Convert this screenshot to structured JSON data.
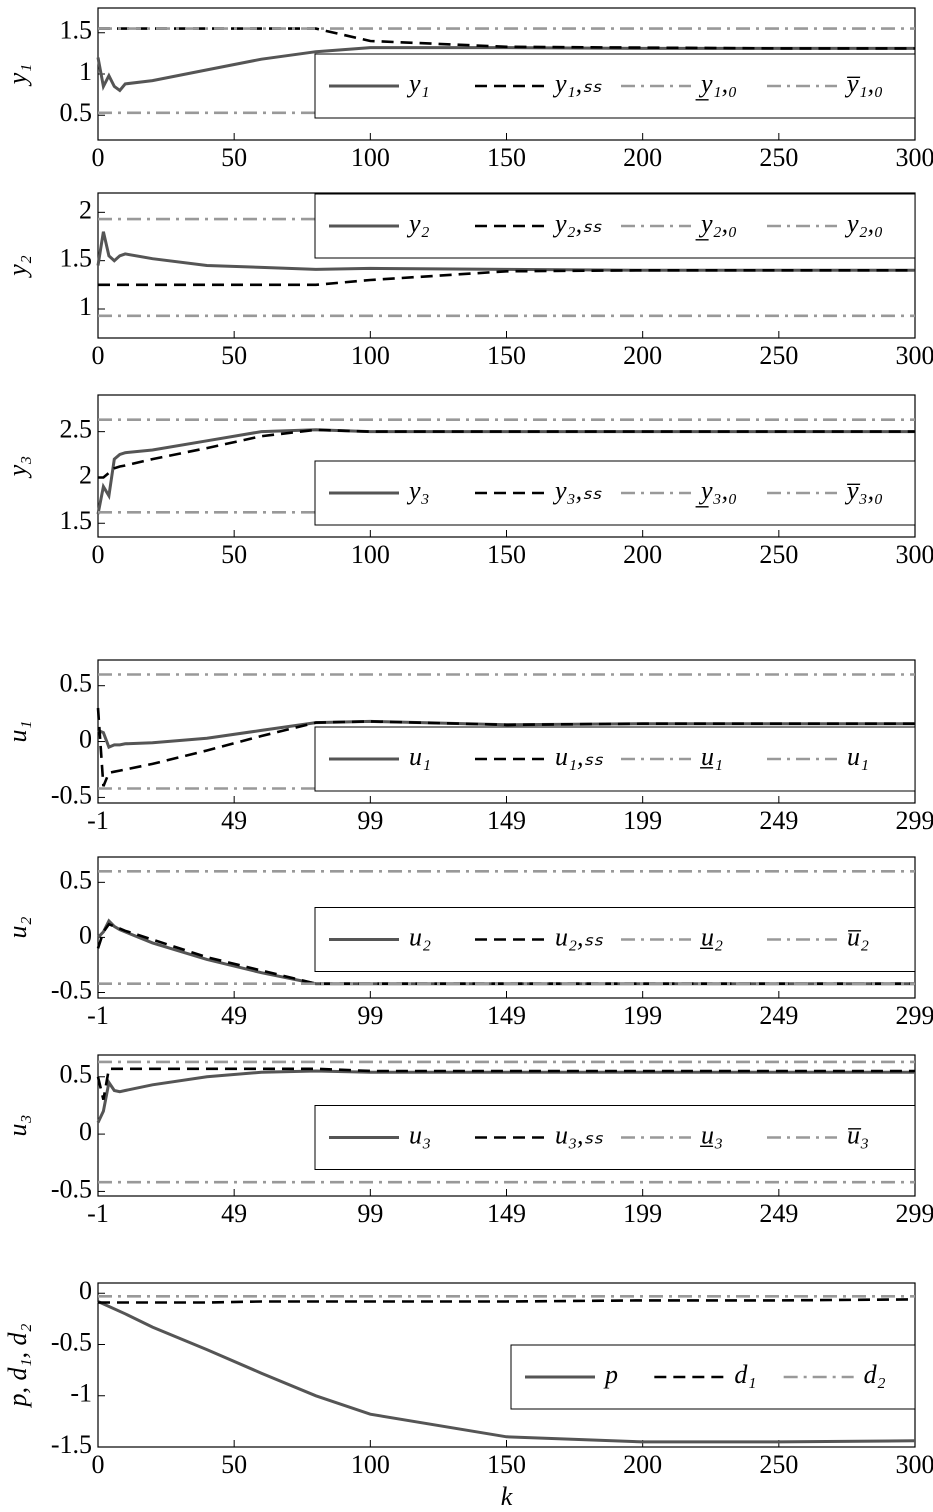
{
  "chart_data": [
    {
      "type": "line",
      "ylabel": "y₁",
      "xlim": [
        0,
        300
      ],
      "ylim": [
        0.2,
        1.8
      ],
      "xticks": [
        0,
        50,
        100,
        150,
        200,
        250,
        300
      ],
      "yticks": [
        0.5,
        1,
        1.5
      ],
      "legend": "center right",
      "x": [
        0,
        2,
        4,
        6,
        8,
        10,
        20,
        40,
        60,
        80,
        100,
        150,
        200,
        250,
        300
      ],
      "series": [
        {
          "name": "y₁",
          "color": "#555555",
          "style": "solid",
          "values": [
            1.2,
            0.85,
            0.98,
            0.85,
            0.8,
            0.88,
            0.92,
            1.05,
            1.18,
            1.27,
            1.32,
            1.32,
            1.31,
            1.31,
            1.31
          ]
        },
        {
          "name": "y₁,ₛₛ",
          "color": "#000000",
          "style": "dashed",
          "values": [
            1.55,
            1.55,
            1.55,
            1.55,
            1.55,
            1.55,
            1.55,
            1.55,
            1.55,
            1.55,
            1.4,
            1.33,
            1.32,
            1.31,
            1.31
          ]
        },
        {
          "name": "y̲₁,₀",
          "color": "#999999",
          "style": "dashdot",
          "values": [
            0.53,
            0.53,
            0.53,
            0.53,
            0.53,
            0.53,
            0.53,
            0.53,
            0.53,
            0.53,
            0.53,
            0.53,
            0.53,
            0.53,
            0.53
          ]
        },
        {
          "name": "y̅₁,₀",
          "color": "#999999",
          "style": "dashdot",
          "values": [
            1.55,
            1.55,
            1.55,
            1.55,
            1.55,
            1.55,
            1.55,
            1.55,
            1.55,
            1.55,
            1.55,
            1.55,
            1.55,
            1.55,
            1.55
          ]
        }
      ]
    },
    {
      "type": "line",
      "ylabel": "y₂",
      "xlim": [
        0,
        300
      ],
      "ylim": [
        0.7,
        2.2
      ],
      "xticks": [
        0,
        50,
        100,
        150,
        200,
        250,
        300
      ],
      "yticks": [
        1,
        1.5,
        2
      ],
      "legend": "upper right",
      "x": [
        0,
        2,
        4,
        6,
        8,
        10,
        20,
        40,
        60,
        80,
        100,
        150,
        200,
        250,
        300
      ],
      "series": [
        {
          "name": "y₂",
          "color": "#555555",
          "style": "solid",
          "values": [
            1.45,
            1.8,
            1.55,
            1.5,
            1.55,
            1.57,
            1.52,
            1.45,
            1.43,
            1.41,
            1.42,
            1.41,
            1.4,
            1.4,
            1.4
          ]
        },
        {
          "name": "y₂,ₛₛ",
          "color": "#000000",
          "style": "dashed",
          "values": [
            1.25,
            1.25,
            1.25,
            1.25,
            1.25,
            1.25,
            1.25,
            1.25,
            1.25,
            1.25,
            1.3,
            1.39,
            1.4,
            1.4,
            1.4
          ]
        },
        {
          "name": "y̲₂,₀",
          "color": "#999999",
          "style": "dashdot",
          "values": [
            0.93,
            0.93,
            0.93,
            0.93,
            0.93,
            0.93,
            0.93,
            0.93,
            0.93,
            0.93,
            0.93,
            0.93,
            0.93,
            0.93,
            0.93
          ]
        },
        {
          "name": "y₂,₀",
          "color": "#999999",
          "style": "dashdot",
          "values": [
            1.93,
            1.93,
            1.93,
            1.93,
            1.93,
            1.93,
            1.93,
            1.93,
            1.93,
            1.93,
            1.93,
            1.93,
            1.93,
            1.93,
            1.93
          ]
        }
      ]
    },
    {
      "type": "line",
      "ylabel": "y₃",
      "xlim": [
        0,
        300
      ],
      "ylim": [
        1.35,
        2.9
      ],
      "xticks": [
        0,
        50,
        100,
        150,
        200,
        250,
        300
      ],
      "yticks": [
        1.5,
        2,
        2.5
      ],
      "legend": "lower right",
      "x": [
        0,
        2,
        4,
        6,
        8,
        10,
        20,
        40,
        60,
        80,
        100,
        150,
        200,
        250,
        300
      ],
      "series": [
        {
          "name": "y₃",
          "color": "#555555",
          "style": "solid",
          "values": [
            1.6,
            1.9,
            1.8,
            2.2,
            2.25,
            2.27,
            2.3,
            2.4,
            2.5,
            2.52,
            2.5,
            2.5,
            2.5,
            2.5,
            2.5
          ]
        },
        {
          "name": "y₃,ₛₛ",
          "color": "#000000",
          "style": "dashed",
          "values": [
            2.0,
            2.0,
            2.05,
            2.1,
            2.12,
            2.13,
            2.2,
            2.32,
            2.45,
            2.52,
            2.5,
            2.5,
            2.5,
            2.5,
            2.5
          ]
        },
        {
          "name": "y̲₃,₀",
          "color": "#999999",
          "style": "dashdot",
          "values": [
            1.62,
            1.62,
            1.62,
            1.62,
            1.62,
            1.62,
            1.62,
            1.62,
            1.62,
            1.62,
            1.62,
            1.62,
            1.62,
            1.62,
            1.62
          ]
        },
        {
          "name": "y̅₃,₀",
          "color": "#999999",
          "style": "dashdot",
          "values": [
            2.63,
            2.63,
            2.63,
            2.63,
            2.63,
            2.63,
            2.63,
            2.63,
            2.63,
            2.63,
            2.63,
            2.63,
            2.63,
            2.63,
            2.63
          ]
        }
      ]
    },
    {
      "type": "line",
      "ylabel": "u₁",
      "xlim": [
        -1,
        299
      ],
      "ylim": [
        -0.55,
        0.73
      ],
      "xticks": [
        -1,
        49,
        99,
        149,
        199,
        249,
        299
      ],
      "yticks": [
        -0.5,
        0,
        0.5
      ],
      "legend": "lower right",
      "x": [
        -1,
        1,
        3,
        5,
        7,
        9,
        19,
        39,
        59,
        79,
        99,
        149,
        199,
        249,
        299
      ],
      "series": [
        {
          "name": "u₁",
          "color": "#555555",
          "style": "solid",
          "values": [
            0.1,
            0.08,
            -0.05,
            -0.03,
            -0.03,
            -0.02,
            -0.01,
            0.03,
            0.1,
            0.17,
            0.18,
            0.15,
            0.16,
            0.16,
            0.16
          ]
        },
        {
          "name": "u₁,ₛₛ",
          "color": "#000000",
          "style": "dashed",
          "values": [
            0.3,
            -0.4,
            -0.28,
            -0.27,
            -0.26,
            -0.25,
            -0.2,
            -0.08,
            0.05,
            0.17,
            0.18,
            0.15,
            0.16,
            0.16,
            0.16
          ]
        },
        {
          "name": "u̲₁",
          "color": "#999999",
          "style": "dashdot",
          "values": [
            -0.42,
            -0.42,
            -0.42,
            -0.42,
            -0.42,
            -0.42,
            -0.42,
            -0.42,
            -0.42,
            -0.42,
            -0.42,
            -0.42,
            -0.42,
            -0.42,
            -0.42
          ]
        },
        {
          "name": "u₁",
          "color": "#999999",
          "style": "dashdot",
          "values": [
            0.6,
            0.6,
            0.6,
            0.6,
            0.6,
            0.6,
            0.6,
            0.6,
            0.6,
            0.6,
            0.6,
            0.6,
            0.6,
            0.6,
            0.6
          ]
        }
      ]
    },
    {
      "type": "line",
      "ylabel": "u₂",
      "xlim": [
        -1,
        299
      ],
      "ylim": [
        -0.55,
        0.73
      ],
      "xticks": [
        -1,
        49,
        99,
        149,
        199,
        249,
        299
      ],
      "yticks": [
        -0.5,
        0,
        0.5
      ],
      "legend": "center right",
      "x": [
        -1,
        1,
        3,
        5,
        7,
        9,
        19,
        39,
        59,
        79,
        99,
        149,
        199,
        249,
        299
      ],
      "series": [
        {
          "name": "u₂",
          "color": "#555555",
          "style": "solid",
          "values": [
            0,
            0.05,
            0.15,
            0.1,
            0.07,
            0.05,
            -0.05,
            -0.2,
            -0.32,
            -0.42,
            -0.42,
            -0.42,
            -0.42,
            -0.42,
            -0.42
          ]
        },
        {
          "name": "u₂,ₛₛ",
          "color": "#000000",
          "style": "dashed",
          "values": [
            -0.1,
            0.05,
            0.12,
            0.1,
            0.08,
            0.06,
            -0.02,
            -0.18,
            -0.3,
            -0.42,
            -0.42,
            -0.42,
            -0.42,
            -0.42,
            -0.42
          ]
        },
        {
          "name": "u̲₂",
          "color": "#999999",
          "style": "dashdot",
          "values": [
            -0.42,
            -0.42,
            -0.42,
            -0.42,
            -0.42,
            -0.42,
            -0.42,
            -0.42,
            -0.42,
            -0.42,
            -0.42,
            -0.42,
            -0.42,
            -0.42,
            -0.42
          ]
        },
        {
          "name": "u̅₂",
          "color": "#999999",
          "style": "dashdot",
          "values": [
            0.6,
            0.6,
            0.6,
            0.6,
            0.6,
            0.6,
            0.6,
            0.6,
            0.6,
            0.6,
            0.6,
            0.6,
            0.6,
            0.6,
            0.6
          ]
        }
      ]
    },
    {
      "type": "line",
      "ylabel": "u₃",
      "xlim": [
        -1,
        299
      ],
      "ylim": [
        -0.54,
        0.69
      ],
      "xticks": [
        -1,
        49,
        99,
        149,
        199,
        249,
        299
      ],
      "yticks": [
        -0.5,
        0,
        0.5
      ],
      "legend": "center right",
      "x": [
        -1,
        1,
        3,
        5,
        7,
        9,
        19,
        39,
        59,
        79,
        99,
        149,
        199,
        249,
        299
      ],
      "series": [
        {
          "name": "u₃",
          "color": "#555555",
          "style": "solid",
          "values": [
            0.1,
            0.2,
            0.45,
            0.38,
            0.37,
            0.38,
            0.43,
            0.5,
            0.54,
            0.55,
            0.54,
            0.54,
            0.54,
            0.54,
            0.54
          ]
        },
        {
          "name": "u₃,ₛₛ",
          "color": "#000000",
          "style": "dashed",
          "values": [
            0.5,
            0.3,
            0.57,
            0.57,
            0.57,
            0.57,
            0.57,
            0.57,
            0.57,
            0.57,
            0.55,
            0.55,
            0.55,
            0.55,
            0.55
          ]
        },
        {
          "name": "u̲₃",
          "color": "#999999",
          "style": "dashdot",
          "values": [
            -0.42,
            -0.42,
            -0.42,
            -0.42,
            -0.42,
            -0.42,
            -0.42,
            -0.42,
            -0.42,
            -0.42,
            -0.42,
            -0.42,
            -0.42,
            -0.42,
            -0.42
          ]
        },
        {
          "name": "u̅₃",
          "color": "#999999",
          "style": "dashdot",
          "values": [
            0.63,
            0.63,
            0.63,
            0.63,
            0.63,
            0.63,
            0.63,
            0.63,
            0.63,
            0.63,
            0.63,
            0.63,
            0.63,
            0.63,
            0.63
          ]
        }
      ]
    },
    {
      "type": "line",
      "ylabel": "p, d₁, d₂",
      "xlabel": "k",
      "xlim": [
        0,
        300
      ],
      "ylim": [
        -1.5,
        0.1
      ],
      "xticks": [
        0,
        50,
        100,
        150,
        200,
        250,
        300
      ],
      "yticks": [
        -1.5,
        -1,
        -0.5,
        0
      ],
      "legend": "center right",
      "x": [
        0,
        10,
        20,
        40,
        60,
        80,
        100,
        150,
        200,
        250,
        300
      ],
      "series": [
        {
          "name": "p",
          "color": "#555555",
          "style": "solid",
          "values": [
            -0.08,
            -0.2,
            -0.33,
            -0.55,
            -0.78,
            -1.0,
            -1.18,
            -1.4,
            -1.45,
            -1.45,
            -1.44
          ]
        },
        {
          "name": "d₁",
          "color": "#000000",
          "style": "dashed",
          "values": [
            -0.09,
            -0.09,
            -0.09,
            -0.09,
            -0.08,
            -0.08,
            -0.08,
            -0.08,
            -0.07,
            -0.07,
            -0.06
          ]
        },
        {
          "name": "d₂",
          "color": "#999999",
          "style": "dashdot",
          "values": [
            -0.03,
            -0.03,
            -0.03,
            -0.03,
            -0.03,
            -0.03,
            -0.03,
            -0.03,
            -0.03,
            -0.03,
            -0.03
          ]
        }
      ]
    }
  ]
}
